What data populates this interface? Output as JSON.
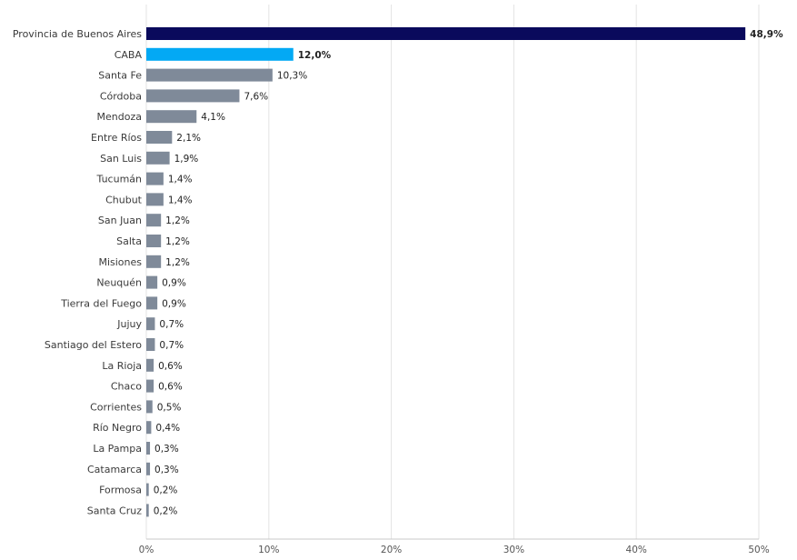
{
  "chart_data": {
    "type": "bar",
    "orientation": "horizontal",
    "categories": [
      "Provincia de Buenos Aires",
      "CABA",
      "Santa Fe",
      "Córdoba",
      "Mendoza",
      "Entre Ríos",
      "San Luis",
      "Tucumán",
      "Chubut",
      "San Juan",
      "Salta",
      "Misiones",
      "Neuquén",
      "Tierra del Fuego",
      "Jujuy",
      "Santiago del Estero",
      "La Rioja",
      "Chaco",
      "Corrientes",
      "Río Negro",
      "La Pampa",
      "Catamarca",
      "Formosa",
      "Santa Cruz"
    ],
    "values": [
      48.9,
      12.0,
      10.3,
      7.6,
      4.1,
      2.1,
      1.9,
      1.4,
      1.4,
      1.2,
      1.2,
      1.2,
      0.9,
      0.9,
      0.7,
      0.7,
      0.6,
      0.6,
      0.5,
      0.4,
      0.3,
      0.3,
      0.2,
      0.2
    ],
    "value_labels": [
      "48,9%",
      "12,0%",
      "10,3%",
      "7,6%",
      "4,1%",
      "2,1%",
      "1,9%",
      "1,4%",
      "1,4%",
      "1,2%",
      "1,2%",
      "1,2%",
      "0,9%",
      "0,9%",
      "0,7%",
      "0,7%",
      "0,6%",
      "0,6%",
      "0,5%",
      "0,4%",
      "0,3%",
      "0,3%",
      "0,2%",
      "0,2%"
    ],
    "xlim": [
      0,
      50
    ],
    "x_ticks": [
      0,
      10,
      20,
      30,
      40,
      50
    ],
    "x_tick_labels": [
      "0%",
      "10%",
      "20%",
      "30%",
      "40%",
      "50%"
    ],
    "grid": "vertical",
    "colors": {
      "highlight_primary": "#0a0a5c",
      "highlight_secondary": "#03a9f4",
      "default": "#7f8a99"
    },
    "bold_labels": [
      "48,9%",
      "12,0%"
    ],
    "title": "",
    "xlabel": "",
    "ylabel": ""
  }
}
